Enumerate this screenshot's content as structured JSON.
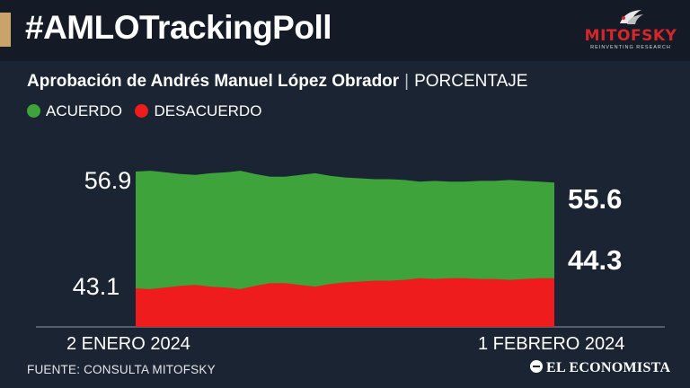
{
  "header": {
    "title": "#AMLOTrackingPoll",
    "logo_text": "MITOFSKY",
    "logo_tagline": "REINVENTING RESEARCH"
  },
  "subtitle": {
    "main": "Aprobación de Andrés Manuel López Obrador",
    "separator": "|",
    "unit": "PORCENTAJE"
  },
  "colors": {
    "acuerdo": "#3ea33a",
    "desacuerdo": "#ee1c1c",
    "background": "#1b2433",
    "accent": "#c9a36b"
  },
  "chart_data": {
    "type": "area",
    "x_start_label": "2 ENERO 2024",
    "x_end_label": "1 FEBRERO 2024",
    "series": [
      {
        "name": "ACUERDO",
        "values": [
          56.9,
          57.0,
          56.8,
          56.6,
          56.5,
          56.7,
          56.8,
          57.0,
          56.6,
          56.3,
          56.3,
          56.5,
          56.7,
          56.4,
          56.2,
          56.1,
          56.0,
          56.0,
          55.9,
          55.7,
          55.8,
          55.7,
          55.7,
          55.8,
          55.8,
          55.9,
          55.8,
          55.7,
          55.6
        ]
      },
      {
        "name": "DESACUERDO",
        "values": [
          43.1,
          43.0,
          43.2,
          43.4,
          43.5,
          43.3,
          43.2,
          43.0,
          43.4,
          43.7,
          43.7,
          43.5,
          43.3,
          43.6,
          43.8,
          43.9,
          44.0,
          44.0,
          44.1,
          44.3,
          44.2,
          44.3,
          44.3,
          44.2,
          44.2,
          44.1,
          44.2,
          44.3,
          44.3
        ]
      }
    ],
    "y_tick_labels": [
      "56.9",
      "43.1"
    ],
    "end_labels": [
      "55.6",
      "44.3"
    ]
  },
  "footer": {
    "source": "FUENTE: CONSULTA MITOFSKY",
    "brand": "EL ECONOMISTA"
  }
}
